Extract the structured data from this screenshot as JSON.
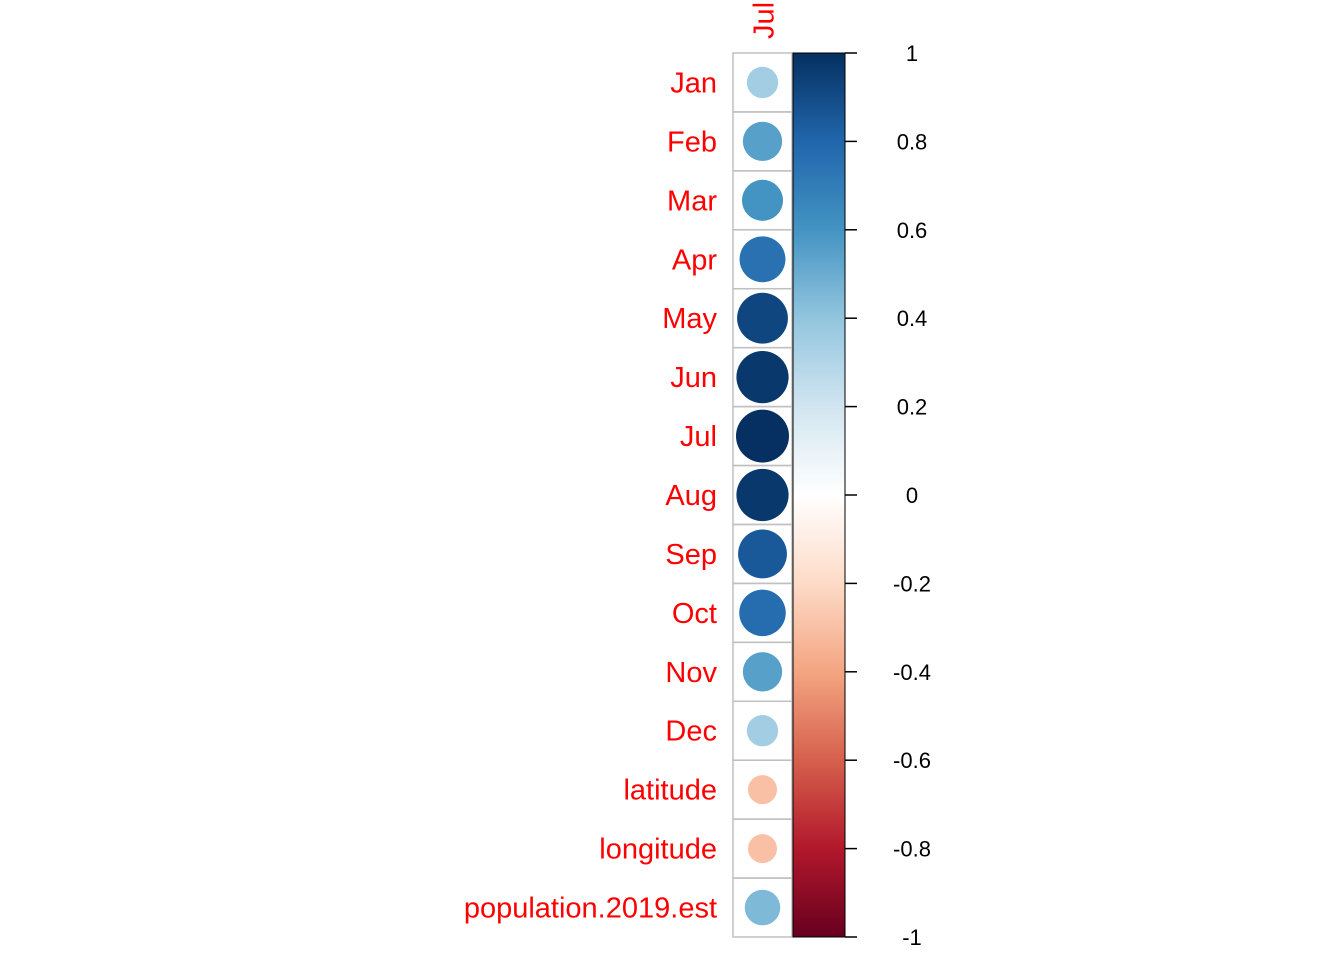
{
  "chart_data": {
    "type": "heatmap",
    "subtype": "corrplot-circle",
    "columns": [
      "Jul"
    ],
    "rows": [
      "Jan",
      "Feb",
      "Mar",
      "Apr",
      "May",
      "Jun",
      "Jul",
      "Aug",
      "Sep",
      "Oct",
      "Nov",
      "Dec",
      "latitude",
      "longitude",
      "population.2019.est"
    ],
    "values": [
      0.35,
      0.55,
      0.6,
      0.75,
      0.92,
      0.97,
      1.0,
      0.97,
      0.85,
      0.77,
      0.55,
      0.35,
      -0.3,
      -0.3,
      0.45
    ],
    "colorbar": {
      "range": [
        -1,
        1
      ],
      "ticks": [
        1,
        0.8,
        0.6,
        0.4,
        0.2,
        0,
        -0.2,
        -0.4,
        -0.6,
        -0.8,
        -1
      ],
      "tick_labels": [
        "1",
        "0.8",
        "0.6",
        "0.4",
        "0.2",
        "0",
        "-0.2",
        "-0.4",
        "-0.6",
        "-0.8",
        "-1"
      ],
      "palette": [
        "#67001f",
        "#b2182b",
        "#d6604d",
        "#f4a582",
        "#fddbc7",
        "#ffffff",
        "#d1e5f0",
        "#92c5de",
        "#4393c3",
        "#2166ac",
        "#053061"
      ]
    },
    "label_color": "#ff0000",
    "grid_color": "#c0c0c0"
  }
}
